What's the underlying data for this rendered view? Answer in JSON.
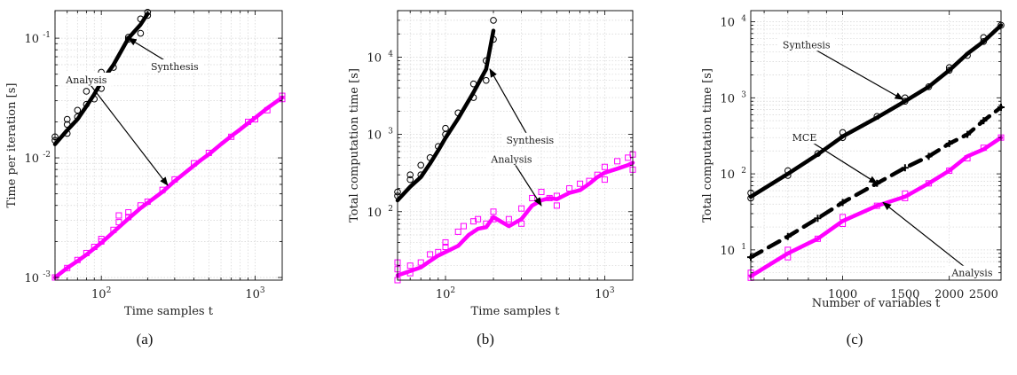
{
  "chart_data": [
    {
      "type": "scatter",
      "caption": "(a)",
      "xlabel": "Time samples t",
      "ylabel": "Time per iteration [s]",
      "xscale": "log",
      "yscale": "log",
      "xlim": [
        50,
        1500
      ],
      "ylim": [
        0.00095,
        0.17
      ],
      "grid": true,
      "xticks": [
        {
          "v": 100,
          "base": "10",
          "exp": "2"
        },
        {
          "v": 1000,
          "base": "10",
          "exp": "3"
        }
      ],
      "yticks": [
        {
          "v": 0.001,
          "base": "10",
          "exp": "-3"
        },
        {
          "v": 0.01,
          "base": "10",
          "exp": "-2"
        },
        {
          "v": 0.1,
          "base": "10",
          "exp": "-1"
        }
      ],
      "series": [
        {
          "name": "Synthesis",
          "color": "#000000",
          "marker": "circle",
          "x": [
            50,
            60,
            70,
            80,
            90,
            100,
            120,
            150,
            180,
            200
          ],
          "y": [
            0.013,
            0.017,
            0.021,
            0.027,
            0.034,
            0.043,
            0.06,
            0.1,
            0.13,
            0.16
          ],
          "scatter_x": [
            50,
            50,
            60,
            60,
            60,
            70,
            70,
            80,
            80,
            90,
            100,
            100,
            100,
            120,
            150,
            150,
            180,
            180,
            200,
            200
          ],
          "scatter_y": [
            0.014,
            0.015,
            0.016,
            0.019,
            0.021,
            0.022,
            0.025,
            0.028,
            0.036,
            0.031,
            0.038,
            0.048,
            0.052,
            0.057,
            0.102,
            0.098,
            0.11,
            0.145,
            0.155,
            0.165
          ]
        },
        {
          "name": "Analysis",
          "color": "#ff00ff",
          "marker": "square",
          "x": [
            50,
            60,
            70,
            80,
            90,
            100,
            120,
            150,
            180,
            200,
            250,
            300,
            350,
            400,
            450,
            500,
            600,
            700,
            800,
            900,
            1000,
            1200,
            1400,
            1500
          ],
          "y": [
            0.001,
            0.0012,
            0.00137,
            0.00155,
            0.00175,
            0.00195,
            0.0024,
            0.0031,
            0.0038,
            0.0042,
            0.0052,
            0.0064,
            0.0075,
            0.0086,
            0.0097,
            0.0107,
            0.013,
            0.0152,
            0.0173,
            0.0195,
            0.0216,
            0.026,
            0.03,
            0.032
          ],
          "scatter_x": [
            50,
            60,
            70,
            80,
            90,
            100,
            100,
            120,
            130,
            130,
            150,
            150,
            180,
            200,
            250,
            300,
            400,
            500,
            700,
            900,
            1000,
            1200,
            1500,
            1500
          ],
          "scatter_y": [
            0.001,
            0.0012,
            0.0014,
            0.0016,
            0.0018,
            0.002,
            0.0021,
            0.0025,
            0.0033,
            0.0029,
            0.0032,
            0.0035,
            0.004,
            0.0043,
            0.0054,
            0.0066,
            0.009,
            0.011,
            0.015,
            0.02,
            0.021,
            0.025,
            0.031,
            0.033
          ]
        }
      ],
      "annotations": [
        {
          "text": "Synthesis",
          "tx": 300,
          "ty": 0.058,
          "ax": 150,
          "ay": 0.1
        },
        {
          "text": "Analysis",
          "tx": 80,
          "ty": 0.045,
          "ax": 270,
          "ay": 0.0059
        }
      ]
    },
    {
      "type": "scatter",
      "caption": "(b)",
      "xlabel": "Time samples t",
      "ylabel": "Total computation time [s]",
      "xscale": "log",
      "yscale": "log",
      "xlim": [
        50,
        1500
      ],
      "ylim": [
        13,
        40000
      ],
      "grid": true,
      "xticks": [
        {
          "v": 100,
          "base": "10",
          "exp": "2"
        },
        {
          "v": 1000,
          "base": "10",
          "exp": "3"
        }
      ],
      "yticks": [
        {
          "v": 100,
          "base": "10",
          "exp": "2"
        },
        {
          "v": 1000,
          "base": "10",
          "exp": "3"
        },
        {
          "v": 10000,
          "base": "10",
          "exp": "4"
        }
      ],
      "series": [
        {
          "name": "Synthesis",
          "color": "#000000",
          "marker": "circle",
          "x": [
            50,
            60,
            70,
            80,
            90,
            100,
            120,
            150,
            180,
            200
          ],
          "y": [
            140,
            210,
            280,
            420,
            620,
            900,
            1600,
            3500,
            7000,
            22000
          ],
          "scatter_x": [
            50,
            50,
            60,
            60,
            70,
            70,
            80,
            90,
            100,
            100,
            120,
            150,
            150,
            180,
            180,
            200,
            200
          ],
          "scatter_y": [
            160,
            180,
            260,
            300,
            300,
            400,
            500,
            700,
            1200,
            1000,
            1900,
            4500,
            3000,
            9000,
            5000,
            30000,
            17000
          ]
        },
        {
          "name": "Analysis",
          "color": "#ff00ff",
          "marker": "square",
          "x": [
            50,
            60,
            70,
            80,
            90,
            100,
            120,
            140,
            160,
            180,
            200,
            250,
            300,
            350,
            400,
            450,
            500,
            600,
            700,
            800,
            900,
            1000,
            1200,
            1400,
            1500
          ],
          "y": [
            15,
            17,
            19,
            23,
            27,
            30,
            36,
            50,
            60,
            63,
            85,
            65,
            80,
            120,
            140,
            150,
            145,
            175,
            190,
            230,
            280,
            320,
            360,
            400,
            430
          ],
          "scatter_x": [
            50,
            50,
            50,
            60,
            60,
            70,
            80,
            90,
            100,
            100,
            120,
            130,
            150,
            160,
            180,
            200,
            200,
            250,
            300,
            300,
            350,
            400,
            450,
            500,
            500,
            600,
            700,
            800,
            900,
            1000,
            1000,
            1200,
            1400,
            1500,
            1500
          ],
          "scatter_y": [
            13,
            18,
            22,
            16,
            20,
            22,
            28,
            30,
            35,
            40,
            55,
            65,
            75,
            80,
            70,
            100,
            80,
            80,
            110,
            70,
            150,
            180,
            150,
            160,
            120,
            200,
            230,
            250,
            300,
            380,
            260,
            450,
            500,
            550,
            350
          ]
        }
      ],
      "annotations": [
        {
          "text": "Synthesis",
          "tx": 340,
          "ty": 850,
          "ax": 190,
          "ay": 7000
        },
        {
          "text": "Analysis",
          "tx": 260,
          "ty": 480,
          "ax": 400,
          "ay": 120
        }
      ]
    },
    {
      "type": "line",
      "caption": "(c)",
      "xlabel": "Number of variables t",
      "ylabel": "Total computation time [s]",
      "xscale": "log",
      "yscale": "log",
      "xlim": [
        550,
        2800
      ],
      "ylim": [
        4,
        14000
      ],
      "grid": true,
      "xticks": [
        {
          "v": 1000,
          "label": "1000"
        },
        {
          "v": 1500,
          "label": "1500"
        },
        {
          "v": 2000,
          "label": "2000"
        },
        {
          "v": 2500,
          "label": "2500"
        }
      ],
      "yticks": [
        {
          "v": 10,
          "base": "10",
          "exp": "1"
        },
        {
          "v": 100,
          "base": "10",
          "exp": "2"
        },
        {
          "v": 1000,
          "base": "10",
          "exp": "3"
        },
        {
          "v": 10000,
          "base": "10",
          "exp": "4"
        }
      ],
      "series": [
        {
          "name": "Synthesis",
          "color": "#000000",
          "marker": "circle",
          "line": "solid",
          "x": [
            550,
            700,
            850,
            1000,
            1250,
            1500,
            1750,
            2000,
            2250,
            2500,
            2800
          ],
          "y": [
            50,
            100,
            180,
            310,
            550,
            900,
            1400,
            2300,
            3800,
            5500,
            9000
          ],
          "scatter_x": [
            550,
            550,
            700,
            700,
            850,
            1000,
            1000,
            1250,
            1500,
            1500,
            1750,
            2000,
            2000,
            2250,
            2500,
            2500,
            2800
          ],
          "scatter_y": [
            48,
            56,
            95,
            110,
            185,
            300,
            350,
            570,
            900,
            1000,
            1400,
            2300,
            2500,
            3600,
            5500,
            6200,
            9000
          ]
        },
        {
          "name": "MCE",
          "color": "#000000",
          "marker": "plus",
          "line": "dashed",
          "x": [
            550,
            700,
            850,
            1000,
            1250,
            1500,
            1750,
            2000,
            2250,
            2500,
            2800
          ],
          "y": [
            8,
            15,
            26,
            42,
            75,
            120,
            170,
            250,
            330,
            500,
            750
          ],
          "scatter_x": [
            550,
            700,
            850,
            1000,
            1250,
            1500,
            1750,
            2000,
            2250,
            2500,
            2800
          ],
          "scatter_y": [
            8,
            15,
            26,
            42,
            75,
            120,
            170,
            250,
            330,
            500,
            750
          ]
        },
        {
          "name": "Analysis",
          "color": "#ff00ff",
          "marker": "square",
          "line": "solid",
          "x": [
            550,
            700,
            850,
            1000,
            1250,
            1500,
            1750,
            2000,
            2250,
            2500,
            2800
          ],
          "y": [
            4.5,
            9,
            14,
            24,
            38,
            50,
            75,
            110,
            170,
            210,
            300
          ],
          "scatter_x": [
            550,
            550,
            700,
            700,
            850,
            1000,
            1000,
            1250,
            1500,
            1500,
            1750,
            2000,
            2250,
            2500,
            2800
          ],
          "scatter_y": [
            4.3,
            5,
            8,
            10,
            14,
            22,
            27,
            38,
            48,
            55,
            75,
            110,
            160,
            220,
            300
          ]
        }
      ],
      "annotations": [
        {
          "text": "Synthesis",
          "tx": 790,
          "ty": 5000,
          "ax": 1480,
          "ay": 950
        },
        {
          "text": "MCE",
          "tx": 780,
          "ty": 300,
          "ax": 1250,
          "ay": 75
        },
        {
          "text": "Analysis",
          "tx": 2320,
          "ty": 5,
          "ax": 1300,
          "ay": 42
        }
      ]
    }
  ]
}
